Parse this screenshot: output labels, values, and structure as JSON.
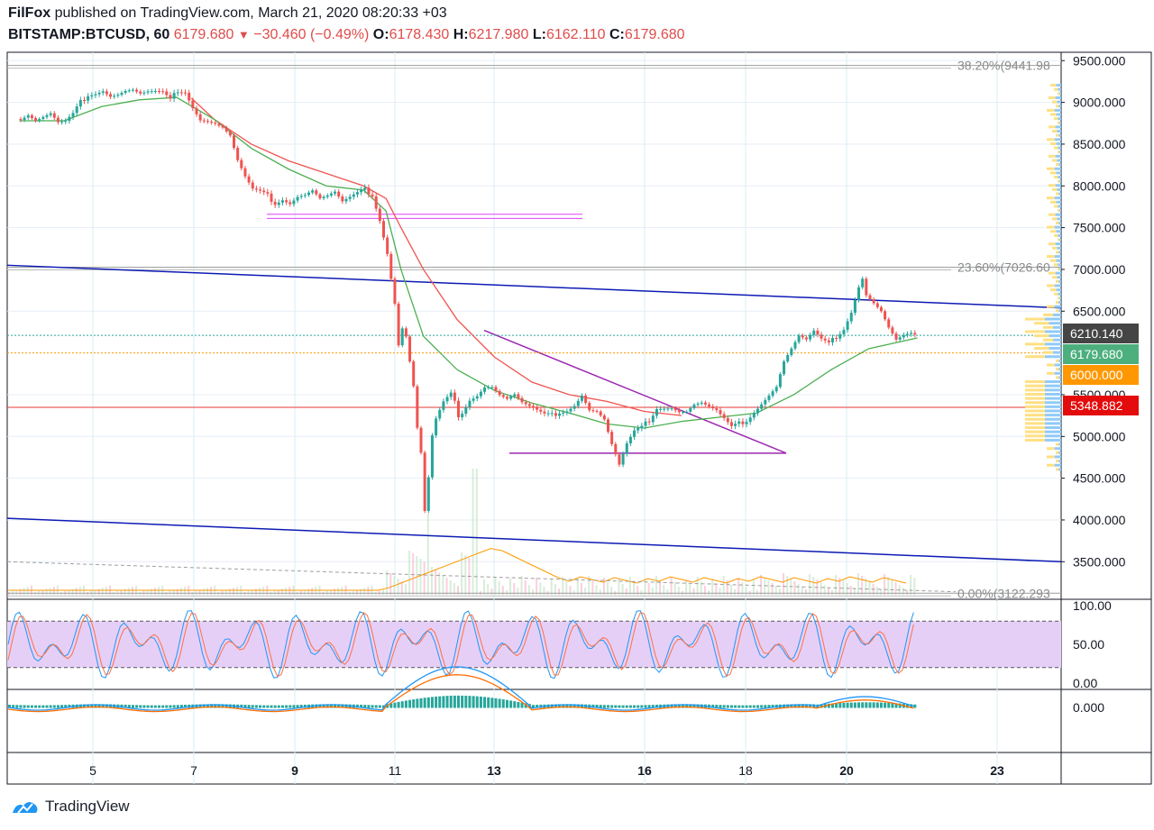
{
  "header": {
    "publisher": "FilFox",
    "published_text": "published on TradingView.com, March 21, 2020 08:20:33 +03",
    "symbol": "BITSTAMP:BTCUSD, 60",
    "last": "6179.680",
    "change": "−30.460 (−0.49%)",
    "o_label": "O:",
    "o_value": "6178.430",
    "h_label": "H:",
    "h_value": "6217.980",
    "l_label": "L:",
    "l_value": "6162.110",
    "c_label": "C:",
    "c_value": "6179.680"
  },
  "footer": {
    "brand": "TradingView"
  },
  "colors": {
    "up": "#26a69a",
    "down": "#ef5350",
    "sma_fast": "#4caf50",
    "sma_slow": "#ef5350",
    "trend_blue": "#0d1bb3",
    "triangle": "#9c27b0",
    "range_pink": "#e040fb",
    "stoch_band": "#e6cff7",
    "badge_dark": "#454545",
    "badge_green": "#4caf7d",
    "badge_orange": "#ff9800",
    "badge_red": "#e30b0b"
  },
  "chart_data": {
    "type": "candlestick",
    "ylim": [
      3050,
      9600
    ],
    "y_ticks": [
      "9500.000",
      "9000.000",
      "8500.000",
      "8000.000",
      "7500.000",
      "7000.000",
      "6500.000",
      "5500.000",
      "5000.000",
      "4500.000",
      "4000.000",
      "3500.000"
    ],
    "y_tick_values": [
      9500,
      9000,
      8500,
      8000,
      7500,
      7000,
      6500,
      5500,
      5000,
      4500,
      4000,
      3500
    ],
    "x_ticks": [
      {
        "label": "5",
        "bold": false
      },
      {
        "label": "7",
        "bold": false
      },
      {
        "label": "9",
        "bold": true
      },
      {
        "label": "11",
        "bold": false
      },
      {
        "label": "13",
        "bold": true
      },
      {
        "label": "16",
        "bold": true
      },
      {
        "label": "18",
        "bold": false
      },
      {
        "label": "20",
        "bold": true
      },
      {
        "label": "23",
        "bold": true
      }
    ],
    "fib_levels": [
      {
        "label": "38.20%(9441.98",
        "value": 9441.98
      },
      {
        "label": "23.60%(7026.60",
        "value": 7026.6
      },
      {
        "label": "0.00%(3122.293",
        "value": 3122.293
      }
    ],
    "price_badges": [
      {
        "label": "6210.140",
        "value": 6210.14,
        "kind": "dark"
      },
      {
        "label": "6179.680",
        "value": 6179.68,
        "kind": "green"
      },
      {
        "label": "6000.000",
        "value": 6000,
        "kind": "orange"
      },
      {
        "label": "5348.882",
        "value": 5348.882,
        "kind": "red"
      }
    ],
    "price_path": [
      [
        3,
        8800
      ],
      [
        5,
        8850
      ],
      [
        7,
        8780
      ],
      [
        9,
        8820
      ],
      [
        11,
        8860
      ],
      [
        13,
        8750
      ],
      [
        15,
        8760
      ],
      [
        17,
        8850
      ],
      [
        19,
        9000
      ],
      [
        21,
        9100
      ],
      [
        23,
        9120
      ],
      [
        25,
        9150
      ],
      [
        27,
        9080
      ],
      [
        29,
        9100
      ],
      [
        31,
        9140
      ],
      [
        33,
        9150
      ],
      [
        35,
        9100
      ],
      [
        37,
        9120
      ],
      [
        39,
        9120
      ],
      [
        41,
        9110
      ],
      [
        43,
        9020
      ],
      [
        45,
        9150
      ],
      [
        47,
        9140
      ],
      [
        49,
        8950
      ],
      [
        51,
        8800
      ],
      [
        53,
        8780
      ],
      [
        55,
        8750
      ],
      [
        57,
        8700
      ],
      [
        59,
        8600
      ],
      [
        61,
        8300
      ],
      [
        63,
        8100
      ],
      [
        65,
        7950
      ],
      [
        67,
        7920
      ],
      [
        69,
        7880
      ],
      [
        71,
        7800
      ],
      [
        73,
        7850
      ],
      [
        75,
        7800
      ],
      [
        77,
        7880
      ],
      [
        79,
        7900
      ],
      [
        81,
        7950
      ],
      [
        83,
        7850
      ],
      [
        85,
        7880
      ],
      [
        87,
        7920
      ],
      [
        89,
        7800
      ],
      [
        91,
        7850
      ],
      [
        93,
        7900
      ],
      [
        95,
        7950
      ],
      [
        97,
        7900
      ],
      [
        99,
        7600
      ],
      [
        101,
        7200
      ],
      [
        103,
        6600
      ],
      [
        104,
        6100
      ],
      [
        105,
        6300
      ],
      [
        106,
        6200
      ],
      [
        107,
        5900
      ],
      [
        108,
        5600
      ],
      [
        109,
        5100
      ],
      [
        110,
        4800
      ],
      [
        111,
        4100
      ],
      [
        112,
        4500
      ],
      [
        113,
        5000
      ],
      [
        114,
        5200
      ],
      [
        115,
        5300
      ],
      [
        116,
        5400
      ],
      [
        117,
        5450
      ],
      [
        118,
        5500
      ],
      [
        119,
        5400
      ],
      [
        120,
        5200
      ],
      [
        121,
        5300
      ],
      [
        123,
        5450
      ],
      [
        125,
        5500
      ],
      [
        127,
        5600
      ],
      [
        129,
        5600
      ],
      [
        131,
        5500
      ],
      [
        133,
        5450
      ],
      [
        135,
        5500
      ],
      [
        137,
        5400
      ],
      [
        139,
        5350
      ],
      [
        141,
        5300
      ],
      [
        143,
        5250
      ],
      [
        145,
        5250
      ],
      [
        147,
        5300
      ],
      [
        149,
        5320
      ],
      [
        151,
        5380
      ],
      [
        153,
        5500
      ],
      [
        155,
        5320
      ],
      [
        157,
        5300
      ],
      [
        159,
        5200
      ],
      [
        161,
        4900
      ],
      [
        163,
        4650
      ],
      [
        165,
        4900
      ],
      [
        167,
        5050
      ],
      [
        169,
        5100
      ],
      [
        171,
        5200
      ],
      [
        173,
        5350
      ],
      [
        175,
        5350
      ],
      [
        177,
        5350
      ],
      [
        179,
        5300
      ],
      [
        181,
        5300
      ],
      [
        183,
        5380
      ],
      [
        185,
        5400
      ],
      [
        187,
        5350
      ],
      [
        189,
        5300
      ],
      [
        191,
        5200
      ],
      [
        193,
        5100
      ],
      [
        195,
        5150
      ],
      [
        197,
        5200
      ],
      [
        199,
        5300
      ],
      [
        201,
        5400
      ],
      [
        203,
        5500
      ],
      [
        205,
        5600
      ],
      [
        207,
        5900
      ],
      [
        209,
        6050
      ],
      [
        211,
        6200
      ],
      [
        213,
        6150
      ],
      [
        215,
        6250
      ],
      [
        217,
        6150
      ],
      [
        219,
        6100
      ],
      [
        221,
        6200
      ],
      [
        223,
        6300
      ],
      [
        225,
        6500
      ],
      [
        227,
        6800
      ],
      [
        228,
        6900
      ],
      [
        229,
        6700
      ],
      [
        231,
        6600
      ],
      [
        233,
        6500
      ],
      [
        235,
        6300
      ],
      [
        237,
        6150
      ],
      [
        239,
        6200
      ],
      [
        241,
        6220
      ],
      [
        243,
        6180
      ]
    ],
    "sma_fast": [
      [
        3,
        8780
      ],
      [
        15,
        8780
      ],
      [
        25,
        8950
      ],
      [
        35,
        9030
      ],
      [
        45,
        9060
      ],
      [
        55,
        8800
      ],
      [
        65,
        8450
      ],
      [
        75,
        8200
      ],
      [
        85,
        8000
      ],
      [
        95,
        7950
      ],
      [
        101,
        7700
      ],
      [
        105,
        7000
      ],
      [
        111,
        6200
      ],
      [
        120,
        5800
      ],
      [
        130,
        5550
      ],
      [
        140,
        5400
      ],
      [
        150,
        5280
      ],
      [
        160,
        5150
      ],
      [
        170,
        5100
      ],
      [
        180,
        5180
      ],
      [
        190,
        5230
      ],
      [
        200,
        5280
      ],
      [
        210,
        5500
      ],
      [
        220,
        5800
      ],
      [
        230,
        6050
      ],
      [
        240,
        6150
      ],
      [
        243,
        6180
      ]
    ],
    "sma_slow": [
      [
        49,
        9050
      ],
      [
        55,
        8800
      ],
      [
        65,
        8500
      ],
      [
        75,
        8300
      ],
      [
        85,
        8150
      ],
      [
        95,
        8000
      ],
      [
        101,
        7850
      ],
      [
        105,
        7500
      ],
      [
        111,
        7000
      ],
      [
        120,
        6400
      ],
      [
        130,
        5950
      ],
      [
        140,
        5650
      ],
      [
        150,
        5500
      ],
      [
        160,
        5420
      ],
      [
        170,
        5300
      ],
      [
        180,
        5250
      ]
    ],
    "volume": [
      {
        "series": "volume",
        "note": "histogram"
      }
    ],
    "stoch": {
      "ylim": [
        0,
        100
      ],
      "ticks": [
        "100.00",
        "50.00",
        "0.00"
      ],
      "tick_values": [
        100,
        50,
        0
      ],
      "bands": [
        80,
        20
      ]
    },
    "macd": {
      "ticks": [
        "0.000"
      ],
      "tick_values": [
        0
      ]
    }
  }
}
